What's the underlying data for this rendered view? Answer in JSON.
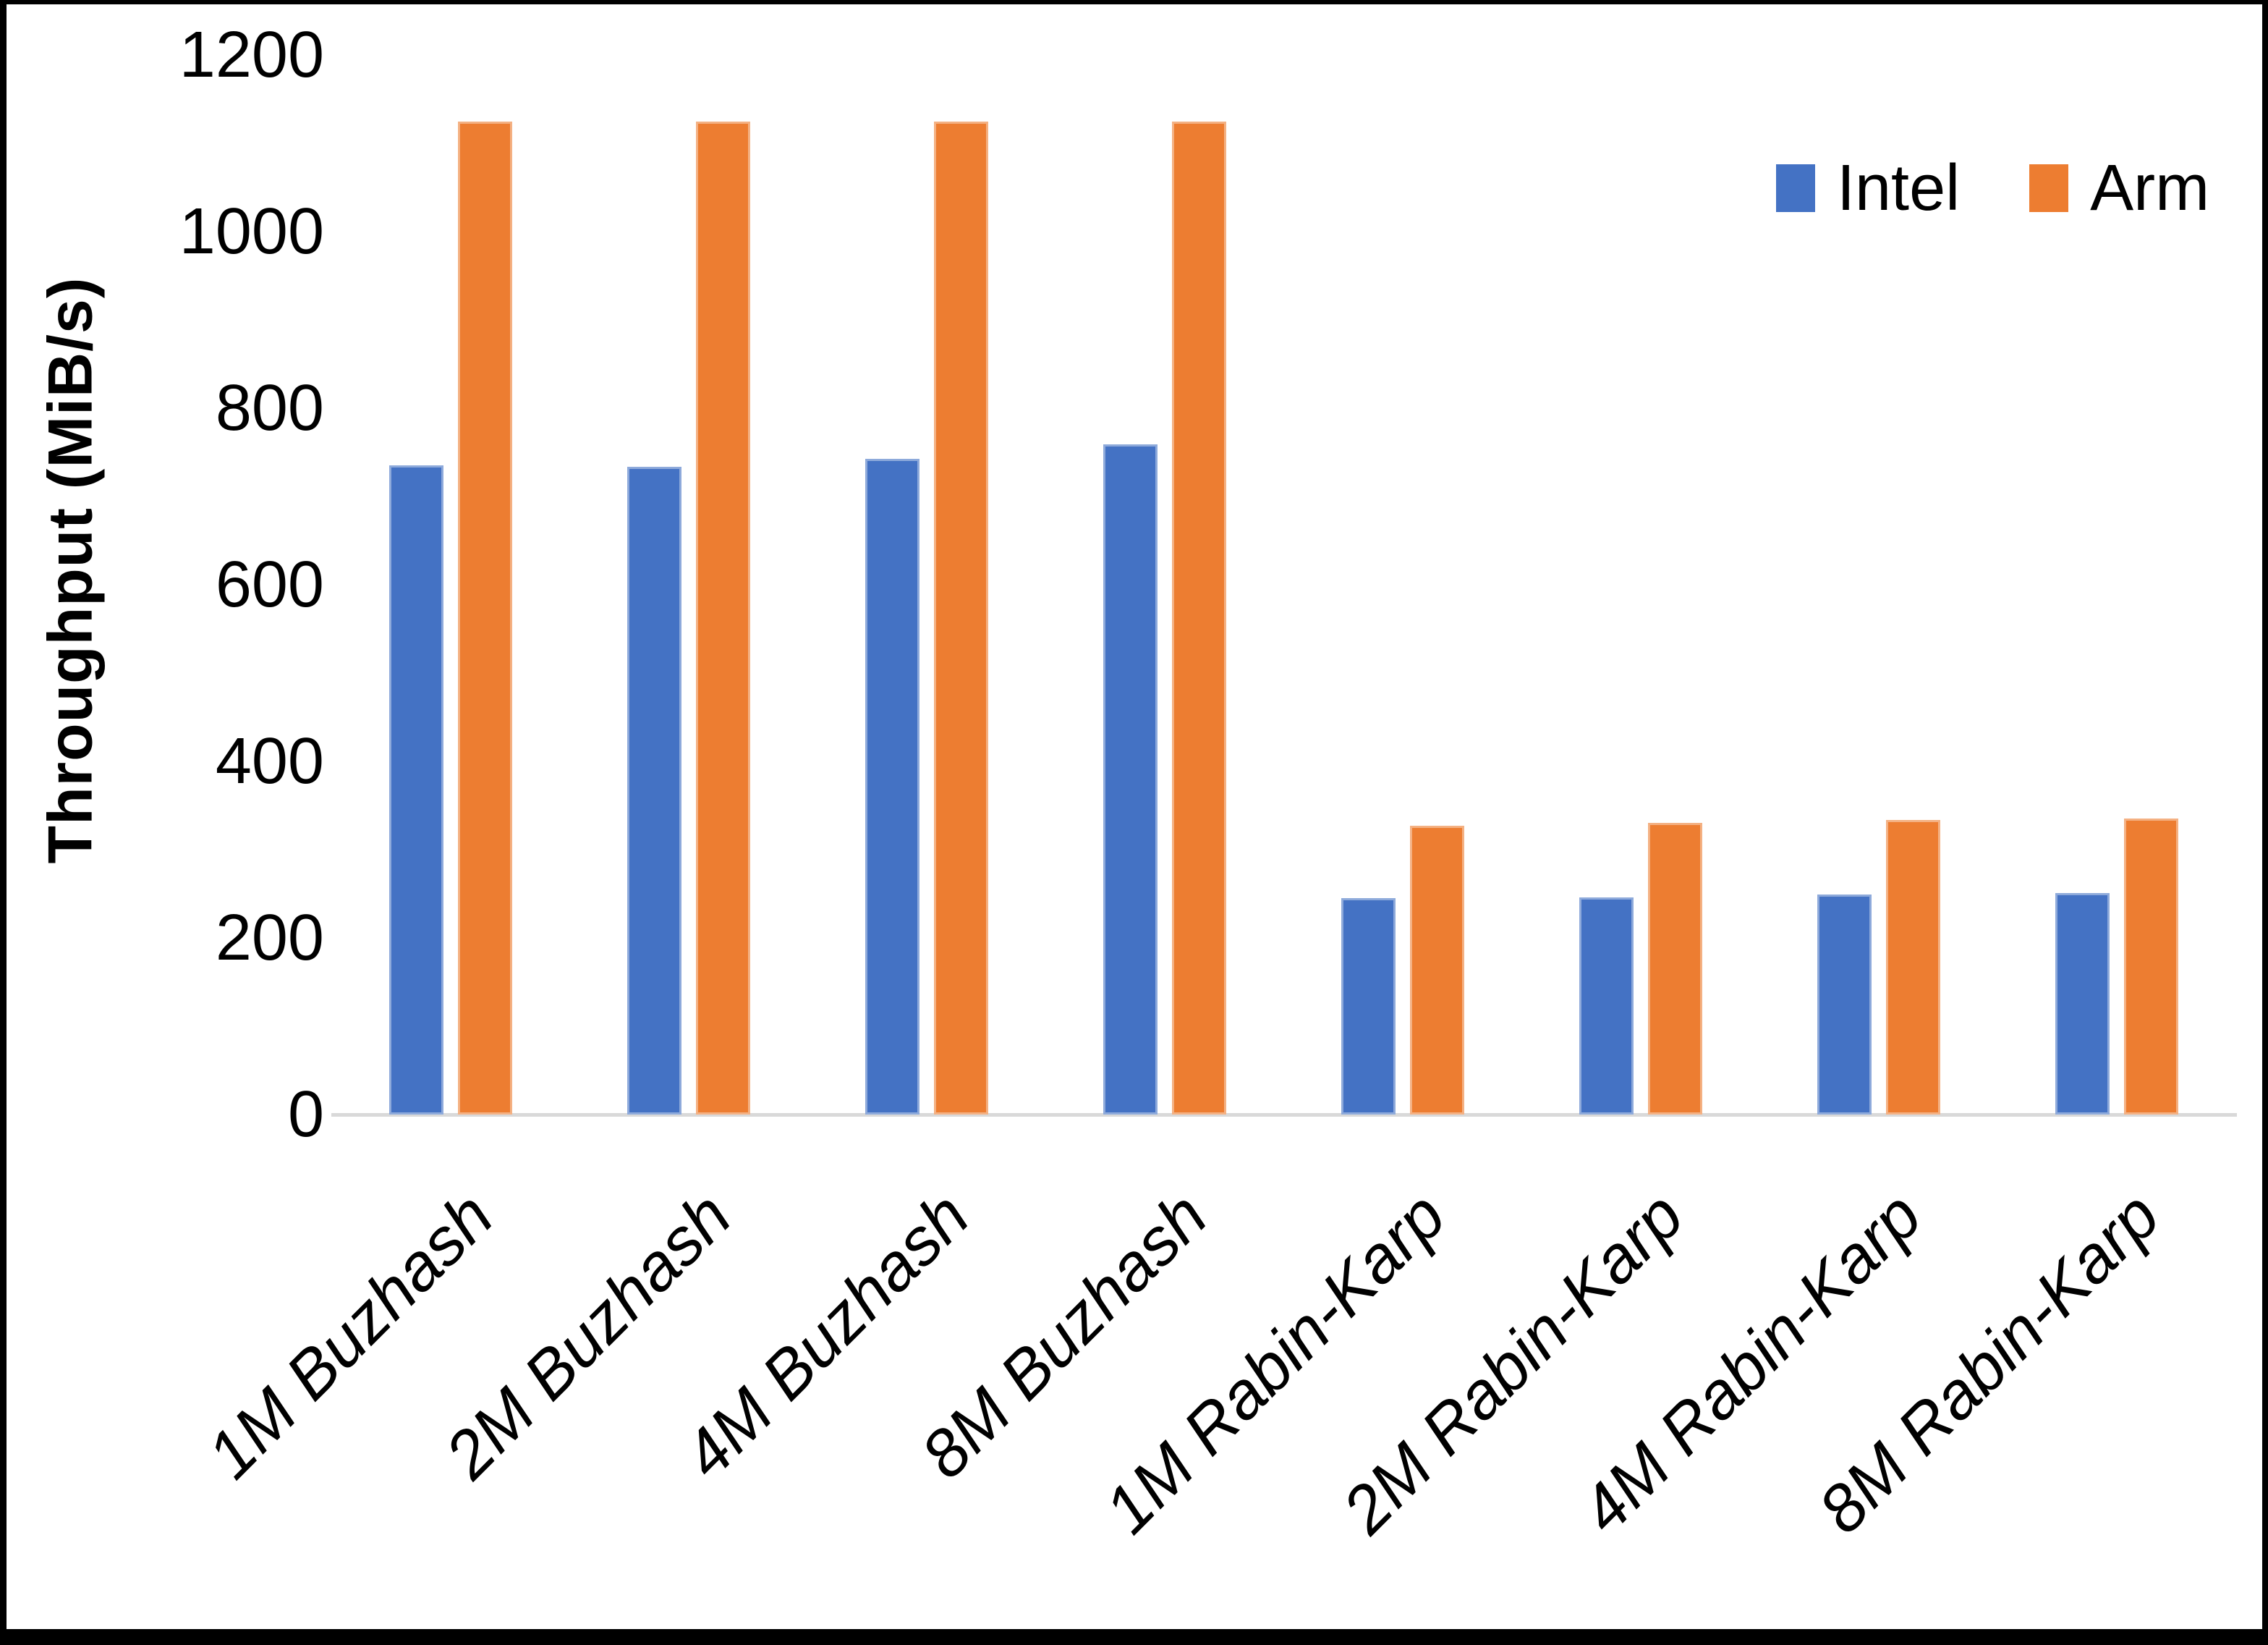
{
  "chart_data": {
    "type": "bar",
    "title": "",
    "categories": [
      "1M Buzhash",
      "2M Buzhash",
      "4M Buzhash",
      "8M Buzhash",
      "1M Rabin-Karp",
      "2M Rabin-Karp",
      "4M Rabin-Karp",
      "8M Rabin-Karp"
    ],
    "series": [
      {
        "name": "Intel",
        "color": "#4472C4",
        "values": [
          735,
          734,
          743,
          759,
          245,
          246,
          249,
          251
        ]
      },
      {
        "name": "Arm",
        "color": "#ED7D31",
        "values": [
          1125,
          1125,
          1125,
          1125,
          327,
          330,
          334,
          335
        ]
      }
    ],
    "xlabel": "",
    "ylabel": "Throughput (MiB/s)",
    "ylim": [
      0,
      1200
    ],
    "yticks": [
      0,
      200,
      400,
      600,
      800,
      1000,
      1200
    ],
    "grid": false,
    "legend_position": "top-right",
    "axis_line_color": "#D9D9D9",
    "background_color": "#FFFFFF"
  }
}
